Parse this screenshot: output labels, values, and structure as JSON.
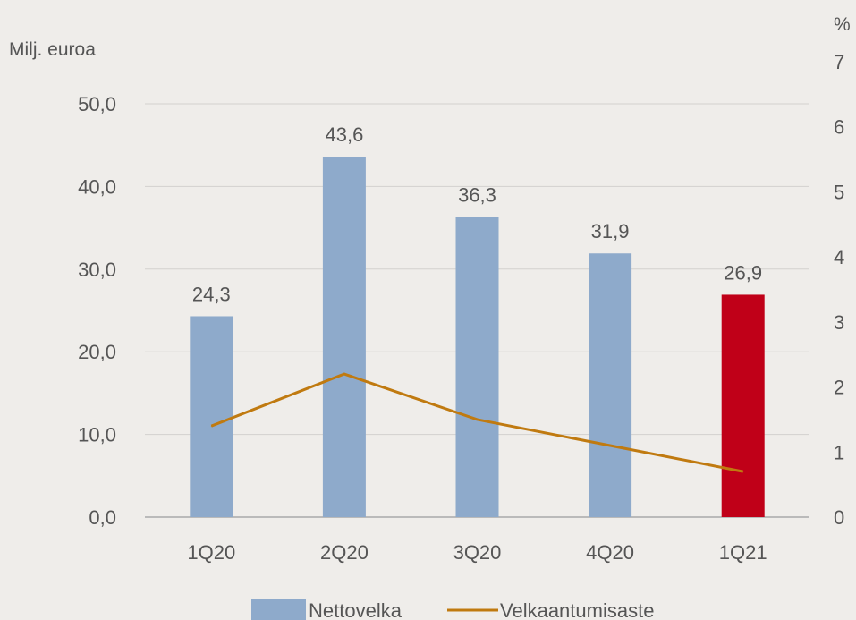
{
  "chart_data": {
    "type": "bar",
    "categories": [
      "1Q20",
      "2Q20",
      "3Q20",
      "4Q20",
      "1Q21"
    ],
    "series": [
      {
        "name": "Nettovelka",
        "type": "bar",
        "axis": "left",
        "values": [
          24.3,
          43.6,
          36.3,
          31.9,
          26.9
        ],
        "labels": [
          "24,3",
          "43,6",
          "36,3",
          "31,9",
          "26,9"
        ],
        "color": "#8eaacb",
        "highlight_color": "#c00018",
        "highlight_index": 4
      },
      {
        "name": "Velkaantumisaste",
        "type": "line",
        "axis": "right",
        "values": [
          1.4,
          2.2,
          1.5,
          1.1,
          0.7
        ],
        "color": "#c07a10"
      }
    ],
    "title": "",
    "ylabel_left": "Milj. euroa",
    "ylabel_right": "%",
    "ylim_left": [
      0,
      50
    ],
    "yticks_left": [
      "0,0",
      "10,0",
      "20,0",
      "30,0",
      "40,0",
      "50,0"
    ],
    "ylim_right": [
      0,
      7
    ],
    "yticks_right": [
      "0",
      "1",
      "2",
      "3",
      "4",
      "5",
      "6",
      "7"
    ],
    "grid": true,
    "legend_position": "bottom"
  }
}
